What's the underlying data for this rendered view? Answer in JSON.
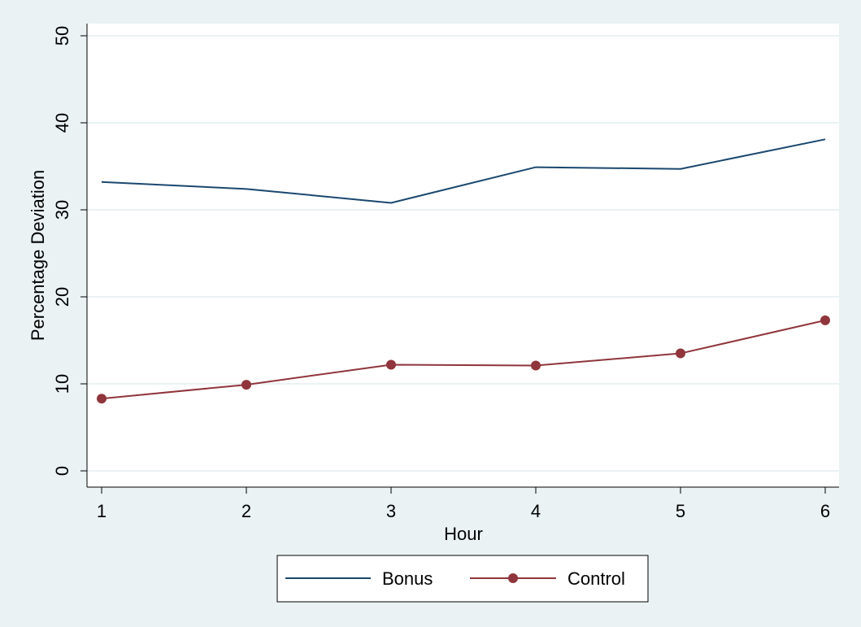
{
  "chart_data": {
    "type": "line",
    "xlabel": "Hour",
    "ylabel": "Percentage Deviation",
    "x": [
      1,
      2,
      3,
      4,
      5,
      6
    ],
    "xticks": [
      "1",
      "2",
      "3",
      "4",
      "5",
      "6"
    ],
    "yticks": [
      "0",
      "10",
      "20",
      "30",
      "40",
      "50"
    ],
    "ylim": [
      0,
      50
    ],
    "xlim": [
      1,
      6
    ],
    "grid": "horizontal",
    "legend_position": "bottom",
    "series": [
      {
        "name": "Bonus",
        "values": [
          33.2,
          32.4,
          30.8,
          34.9,
          34.7,
          38.1
        ],
        "color": "#1a476f",
        "marker": "none"
      },
      {
        "name": "Control",
        "values": [
          8.3,
          9.9,
          12.2,
          12.1,
          13.5,
          17.3
        ],
        "color": "#90353b",
        "marker": "circle"
      }
    ]
  },
  "colors": {
    "background": "#eaf2f3",
    "plot_background": "#ffffff",
    "gridline": "#eaf2f3"
  }
}
